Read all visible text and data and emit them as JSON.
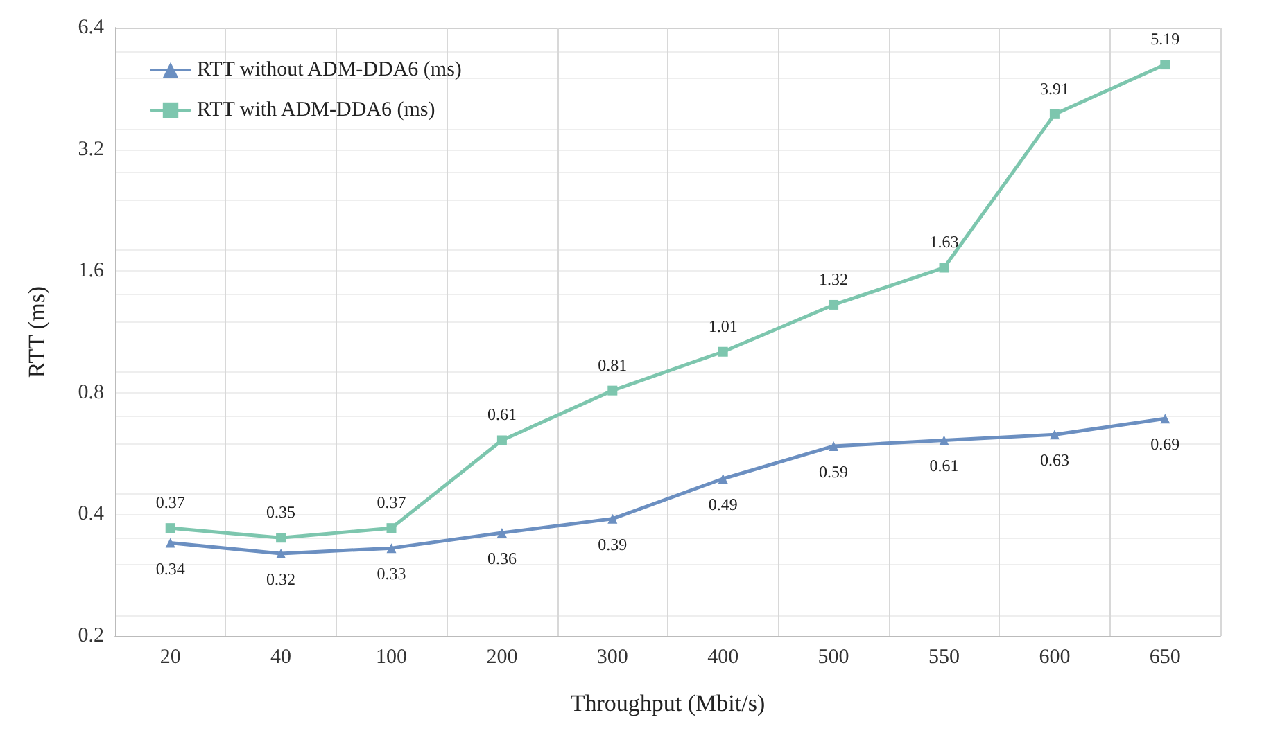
{
  "chart_data": {
    "type": "line",
    "xlabel": "Throughput (Mbit/s)",
    "ylabel": "RTT (ms)",
    "categories": [
      "20",
      "40",
      "100",
      "200",
      "300",
      "400",
      "500",
      "550",
      "600",
      "650"
    ],
    "series": [
      {
        "name": "RTT without ADM-DDA6 (ms)",
        "color": "#6b8fc1",
        "marker": "triangle",
        "values": [
          0.34,
          0.32,
          0.33,
          0.36,
          0.39,
          0.49,
          0.59,
          0.61,
          0.63,
          0.69
        ]
      },
      {
        "name": "RTT with ADM-DDA6 (ms)",
        "color": "#7dc6ae",
        "marker": "square",
        "values": [
          0.37,
          0.35,
          0.37,
          0.61,
          0.81,
          1.01,
          1.32,
          1.63,
          3.91,
          5.19
        ]
      }
    ],
    "log": "y",
    "ylim": [
      0.2,
      6.4
    ],
    "yticks": [
      0.2,
      0.4,
      0.8,
      1.6,
      3.2,
      6.4
    ],
    "grid": true,
    "legend": "top left",
    "data_labels": true,
    "line_style": "solid"
  }
}
